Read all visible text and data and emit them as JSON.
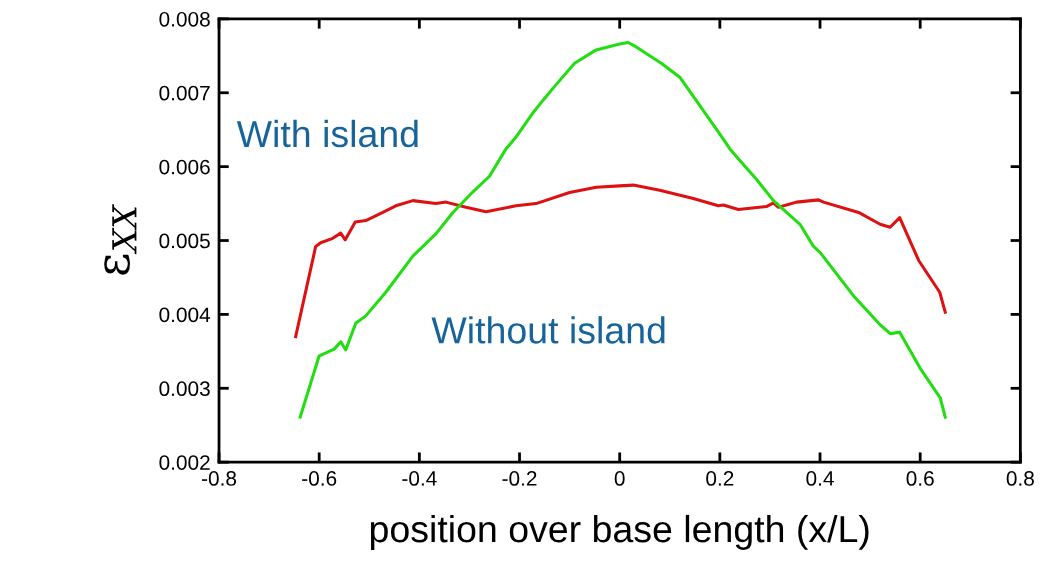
{
  "chart_data": {
    "type": "line",
    "xlabel": "position over base length (x/L)",
    "ylabel": "ε$_{XX}$",
    "xlim": [
      -0.8,
      0.8
    ],
    "xticks": [
      -0.8,
      -0.6,
      -0.4,
      -0.2,
      0,
      0.2,
      0.4,
      0.6,
      0.8
    ],
    "ylim": [
      0.002,
      0.008
    ],
    "yticks": [
      0.002,
      0.003,
      0.004,
      0.005,
      0.006,
      0.007,
      0.008
    ],
    "grid": false,
    "marker": "none",
    "line_style": "solid",
    "annotations": [
      "With island",
      "Without island"
    ],
    "series": [
      {
        "color": "#dd1111",
        "x": [
          -0.647,
          -0.607,
          -0.597,
          -0.573,
          -0.557,
          -0.548,
          -0.528,
          -0.507,
          -0.473,
          -0.447,
          -0.413,
          -0.367,
          -0.347,
          -0.307,
          -0.267,
          -0.207,
          -0.167,
          -0.1,
          -0.047,
          0,
          0.027,
          0.08,
          0.147,
          0.197,
          0.207,
          0.237,
          0.293,
          0.307,
          0.317,
          0.353,
          0.397,
          0.407,
          0.477,
          0.52,
          0.54,
          0.559,
          0.597,
          0.639,
          0.65
        ],
        "values": [
          0.0037,
          0.00492,
          0.00497,
          0.00503,
          0.0051,
          0.00501,
          0.00525,
          0.00527,
          0.00538,
          0.00547,
          0.00554,
          0.0055,
          0.00552,
          0.00545,
          0.00539,
          0.00547,
          0.0055,
          0.00565,
          0.00572,
          0.00574,
          0.00575,
          0.00568,
          0.00557,
          0.00547,
          0.00548,
          0.00542,
          0.00546,
          0.00551,
          0.00545,
          0.00552,
          0.00555,
          0.00552,
          0.00538,
          0.00522,
          0.00518,
          0.00531,
          0.00473,
          0.0043,
          0.00403
        ]
      },
      {
        "color": "#22dd11",
        "x": [
          -0.638,
          -0.6,
          -0.57,
          -0.557,
          -0.547,
          -0.527,
          -0.507,
          -0.467,
          -0.413,
          -0.367,
          -0.333,
          -0.293,
          -0.26,
          -0.227,
          -0.207,
          -0.173,
          -0.153,
          -0.127,
          -0.09,
          -0.047,
          0,
          0.017,
          0.033,
          0.083,
          0.12,
          0.147,
          0.2,
          0.22,
          0.243,
          0.273,
          0.307,
          0.36,
          0.387,
          0.4,
          0.467,
          0.52,
          0.54,
          0.559,
          0.6,
          0.64,
          0.65
        ],
        "values": [
          0.00261,
          0.00344,
          0.00353,
          0.00363,
          0.00352,
          0.00388,
          0.00398,
          0.0043,
          0.00479,
          0.00509,
          0.00538,
          0.00566,
          0.00587,
          0.00624,
          0.0064,
          0.00673,
          0.0069,
          0.00711,
          0.0074,
          0.00758,
          0.00766,
          0.00768,
          0.00762,
          0.0074,
          0.00721,
          0.00695,
          0.00644,
          0.00624,
          0.00606,
          0.00583,
          0.00554,
          0.00522,
          0.00492,
          0.00484,
          0.00425,
          0.00386,
          0.00374,
          0.00376,
          0.00327,
          0.00287,
          0.00261
        ]
      }
    ]
  }
}
